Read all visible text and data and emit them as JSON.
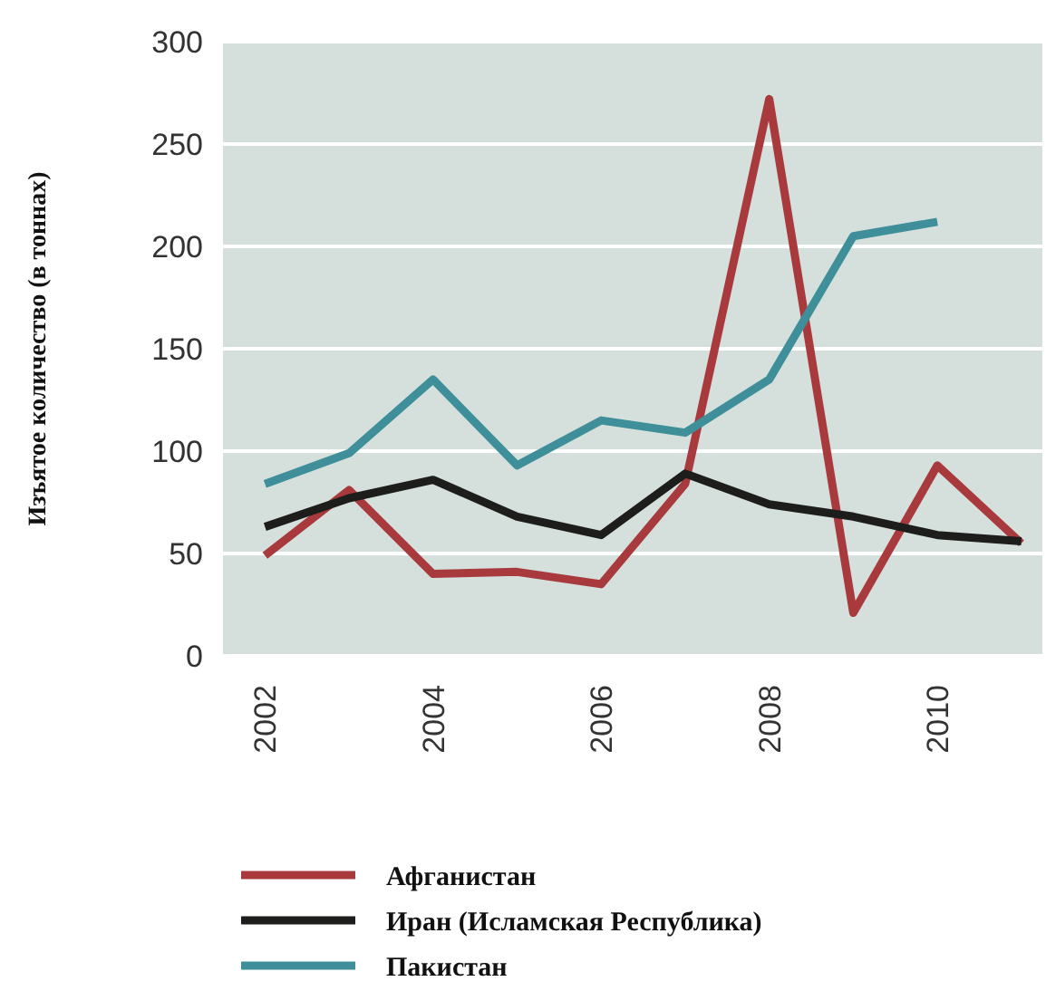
{
  "chart_data": {
    "type": "line",
    "ylabel": "Изъятое количество (в тоннах)",
    "x": [
      2002,
      2003,
      2004,
      2005,
      2006,
      2007,
      2008,
      2009,
      2010,
      2011
    ],
    "xlim": [
      2001.5,
      2011.25
    ],
    "xticks": [
      2002,
      2004,
      2006,
      2008,
      2010
    ],
    "ylim": [
      0,
      300
    ],
    "yticks": [
      0,
      50,
      100,
      150,
      200,
      250,
      300
    ],
    "grid": "y",
    "legend": "bottom",
    "series": [
      {
        "name": "Афганистан",
        "color": "#a83a3e",
        "values": [
          49,
          81,
          40,
          41,
          35,
          84,
          272,
          21,
          93,
          55
        ]
      },
      {
        "name": "Иран (Исламская Республика)",
        "color": "#1d1d1b",
        "values": [
          63,
          77,
          86,
          68,
          59,
          89,
          74,
          68,
          59,
          56
        ]
      },
      {
        "name": "Пакистан",
        "color": "#3f8f9b",
        "values": [
          84,
          99,
          135,
          93,
          115,
          109,
          135,
          205,
          212,
          null
        ]
      }
    ]
  }
}
